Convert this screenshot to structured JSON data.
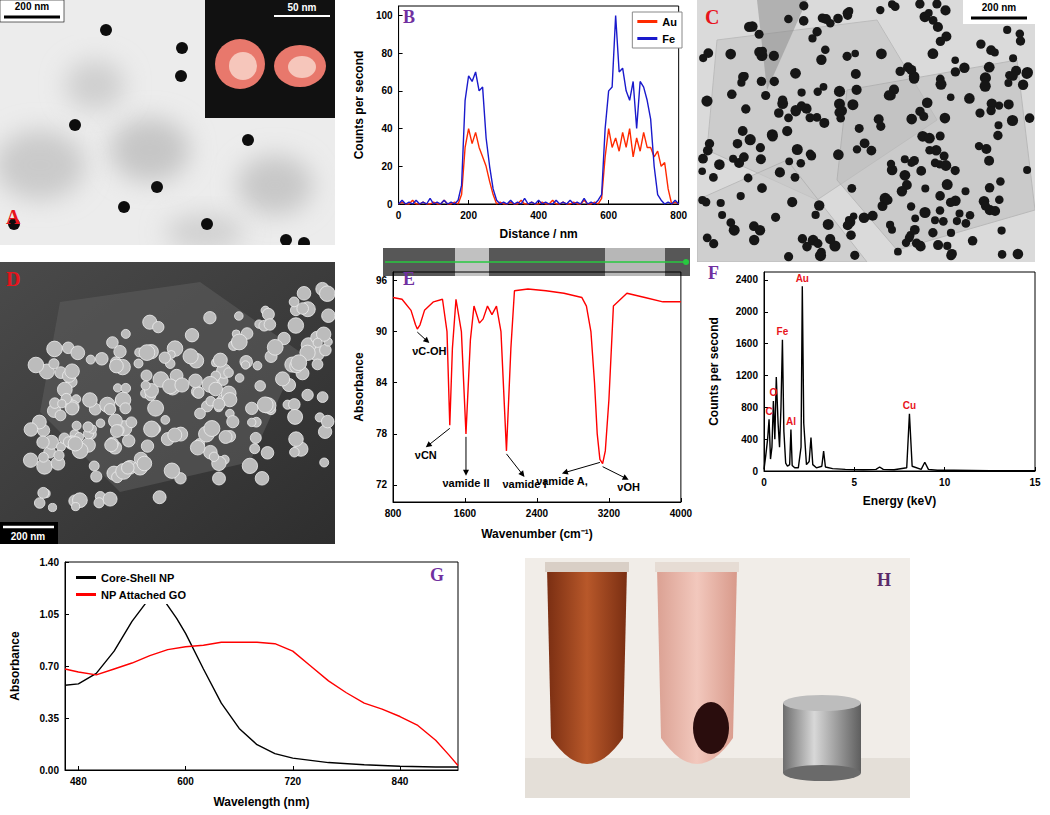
{
  "chart_data": [
    {
      "type": "line",
      "title": "B",
      "x_label": "Distance / nm",
      "y_label": "Counts per second",
      "x": [
        0,
        10,
        20,
        30,
        40,
        50,
        60,
        70,
        80,
        90,
        100,
        110,
        120,
        130,
        140,
        150,
        160,
        170,
        180,
        190,
        200,
        210,
        220,
        230,
        240,
        250,
        260,
        270,
        280,
        290,
        300,
        310,
        320,
        330,
        340,
        350,
        360,
        370,
        380,
        390,
        400,
        410,
        420,
        430,
        440,
        450,
        460,
        470,
        480,
        490,
        500,
        510,
        520,
        530,
        540,
        550,
        560,
        570,
        580,
        590,
        600,
        610,
        620,
        630,
        640,
        650,
        660,
        670,
        680,
        690,
        700,
        710,
        720,
        730,
        740,
        750,
        760,
        770,
        780,
        790,
        800
      ],
      "series": [
        {
          "name": "Au",
          "color": "#ff2a00",
          "values": [
            0,
            1,
            0,
            0,
            2,
            0,
            0,
            1,
            0,
            0,
            1,
            0,
            0,
            2,
            0,
            0,
            1,
            0,
            5,
            30,
            40,
            32,
            38,
            30,
            25,
            20,
            12,
            5,
            0,
            1,
            0,
            0,
            1,
            0,
            0,
            2,
            0,
            0,
            1,
            0,
            0,
            1,
            0,
            0,
            2,
            0,
            0,
            1,
            0,
            0,
            1,
            0,
            0,
            2,
            0,
            0,
            1,
            0,
            3,
            25,
            40,
            30,
            35,
            28,
            38,
            30,
            40,
            25,
            35,
            28,
            38,
            30,
            30,
            25,
            28,
            20,
            22,
            8,
            0,
            1,
            0
          ]
        },
        {
          "name": "Fe",
          "color": "#1a1acc",
          "values": [
            0,
            2,
            0,
            1,
            0,
            2,
            0,
            1,
            0,
            3,
            0,
            1,
            0,
            2,
            0,
            1,
            0,
            2,
            10,
            55,
            68,
            65,
            70,
            60,
            62,
            35,
            20,
            8,
            2,
            0,
            1,
            0,
            2,
            0,
            1,
            0,
            3,
            0,
            1,
            0,
            2,
            0,
            1,
            0,
            0,
            2,
            0,
            1,
            0,
            2,
            0,
            1,
            0,
            3,
            0,
            1,
            0,
            2,
            5,
            40,
            60,
            62,
            100,
            70,
            72,
            60,
            55,
            65,
            40,
            65,
            62,
            55,
            45,
            20,
            5,
            2,
            0,
            1,
            0,
            2,
            0
          ]
        }
      ],
      "xlim": [
        0,
        800
      ],
      "xticks": [
        0,
        200,
        400,
        600,
        800
      ],
      "ylim": [
        0,
        105
      ],
      "yticks": [
        0,
        20,
        40,
        60,
        80,
        100
      ],
      "legend": "upper right",
      "grid": false
    },
    {
      "type": "line",
      "title": "E",
      "x_label": "Wavenumber (cm⁻¹)",
      "y_label": "Absorbance",
      "x": [
        800,
        900,
        1000,
        1050,
        1070,
        1100,
        1150,
        1250,
        1350,
        1400,
        1431,
        1460,
        1500,
        1560,
        1611,
        1660,
        1700,
        1760,
        1802,
        1850,
        1900,
        1950,
        2000,
        2061,
        2110,
        2150,
        2300,
        2500,
        2700,
        2900,
        2950,
        3000,
        3040,
        3070,
        3100,
        3130,
        3160,
        3200,
        3250,
        3400,
        3600,
        3800,
        4000
      ],
      "values": [
        94,
        93.8,
        92.5,
        90.8,
        90.3,
        90.8,
        92.5,
        93.5,
        93.8,
        90,
        79,
        88,
        93.8,
        90,
        78,
        89,
        93,
        91,
        91.5,
        93,
        92,
        93,
        90,
        76,
        88,
        94.8,
        95,
        94.8,
        94.5,
        94,
        93,
        90,
        84,
        78,
        75,
        74.5,
        76,
        82,
        93,
        94.5,
        94,
        93.5,
        93.5
      ],
      "color": "#ff0000",
      "xlim": [
        800,
        4000
      ],
      "xticks": [
        800,
        1600,
        2400,
        3200,
        4000
      ],
      "ylim": [
        70,
        97
      ],
      "yticks": [
        72,
        78,
        84,
        90,
        96
      ],
      "annotations": [
        {
          "text": "νC-OH",
          "x": 1070,
          "y": 90.3
        },
        {
          "text": "νCN",
          "x": 1431,
          "y": 79
        },
        {
          "text": "νamide II",
          "x": 1611,
          "y": 78
        },
        {
          "text": "νamide I",
          "x": 2061,
          "y": 76
        },
        {
          "text": "νamide A,",
          "x": 3100,
          "y": 75
        },
        {
          "text": "νOH",
          "x": 3130,
          "y": 74.5
        }
      ],
      "grid": false
    },
    {
      "type": "line",
      "title": "F",
      "x_label": "Energy (keV)",
      "y_label": "Counts per second",
      "x": [
        0,
        0.1,
        0.2,
        0.28,
        0.36,
        0.44,
        0.52,
        0.6,
        0.68,
        0.78,
        0.86,
        0.94,
        1.02,
        1.1,
        1.2,
        1.3,
        1.42,
        1.49,
        1.56,
        1.7,
        1.9,
        2.05,
        2.12,
        2.2,
        2.35,
        2.5,
        2.6,
        2.7,
        2.9,
        3.2,
        3.3,
        3.4,
        3.8,
        4.5,
        5.5,
        6.2,
        6.4,
        6.6,
        7.2,
        7.9,
        8.05,
        8.2,
        8.7,
        8.9,
        9.1,
        9.6,
        10.5,
        11.5,
        12.5,
        13.5,
        14.5,
        15
      ],
      "values": [
        20,
        200,
        400,
        650,
        150,
        300,
        880,
        400,
        1180,
        600,
        300,
        800,
        1650,
        500,
        100,
        60,
        80,
        520,
        70,
        40,
        40,
        300,
        2320,
        600,
        80,
        120,
        420,
        80,
        40,
        60,
        250,
        50,
        30,
        20,
        15,
        20,
        50,
        20,
        15,
        40,
        720,
        60,
        20,
        110,
        20,
        10,
        10,
        8,
        5,
        5,
        5,
        5
      ],
      "color": "#000000",
      "xlim": [
        0,
        15
      ],
      "xticks": [
        0,
        5,
        10,
        15
      ],
      "ylim": [
        0,
        2500
      ],
      "yticks": [
        0,
        400,
        800,
        1200,
        1600,
        2000,
        2400
      ],
      "annotations": [
        {
          "text": "C",
          "x": 0.28,
          "y": 650
        },
        {
          "text": "O",
          "x": 0.52,
          "y": 880
        },
        {
          "text": "Fe",
          "x": 1.02,
          "y": 1650
        },
        {
          "text": "Al",
          "x": 1.49,
          "y": 520
        },
        {
          "text": "Au",
          "x": 2.12,
          "y": 2320
        },
        {
          "text": "Cu",
          "x": 8.05,
          "y": 720
        }
      ],
      "grid": false
    },
    {
      "type": "line",
      "title": "G",
      "x_label": "Wavelength (nm)",
      "y_label": "Absorbance",
      "series": [
        {
          "name": "Core-Shell NP",
          "color": "#000000",
          "x": [
            465,
            480,
            500,
            520,
            540,
            555,
            565,
            575,
            590,
            600,
            620,
            640,
            660,
            680,
            700,
            720,
            760,
            800,
            840,
            880,
            905
          ],
          "values": [
            0.57,
            0.58,
            0.65,
            0.8,
            1.0,
            1.12,
            1.18,
            1.15,
            1.02,
            0.92,
            0.68,
            0.45,
            0.28,
            0.17,
            0.11,
            0.08,
            0.05,
            0.035,
            0.025,
            0.02,
            0.02
          ]
        },
        {
          "name": "NP Attached GO",
          "color": "#ff0000",
          "x": [
            465,
            480,
            500,
            520,
            540,
            560,
            580,
            600,
            620,
            640,
            660,
            680,
            700,
            720,
            740,
            760,
            780,
            800,
            820,
            840,
            860,
            880,
            895,
            905
          ],
          "values": [
            0.68,
            0.66,
            0.64,
            0.68,
            0.72,
            0.77,
            0.81,
            0.83,
            0.84,
            0.86,
            0.86,
            0.86,
            0.85,
            0.8,
            0.7,
            0.6,
            0.52,
            0.45,
            0.41,
            0.36,
            0.3,
            0.2,
            0.1,
            0.03
          ]
        }
      ],
      "xlim": [
        465,
        905
      ],
      "xticks": [
        480,
        600,
        720,
        840
      ],
      "ylim": [
        0,
        1.4
      ],
      "yticks": [
        {
          "value": 0,
          "label": "0.00"
        },
        {
          "value": 0.35,
          "label": "0.35"
        },
        {
          "value": 0.7,
          "label": "0.70"
        },
        {
          "value": 1.05,
          "label": "1.05"
        },
        {
          "value": 1.4,
          "label": "1.40"
        }
      ],
      "legend": "upper left",
      "grid": false
    }
  ],
  "images": [
    {
      "title": "A",
      "scale_bar": "200 nm",
      "inset_scale_bar": "50 nm"
    },
    {
      "title": "C",
      "scale_bar": "200 nm"
    },
    {
      "title": "D",
      "scale_bar": "200 nm"
    },
    {
      "title": "H"
    }
  ]
}
